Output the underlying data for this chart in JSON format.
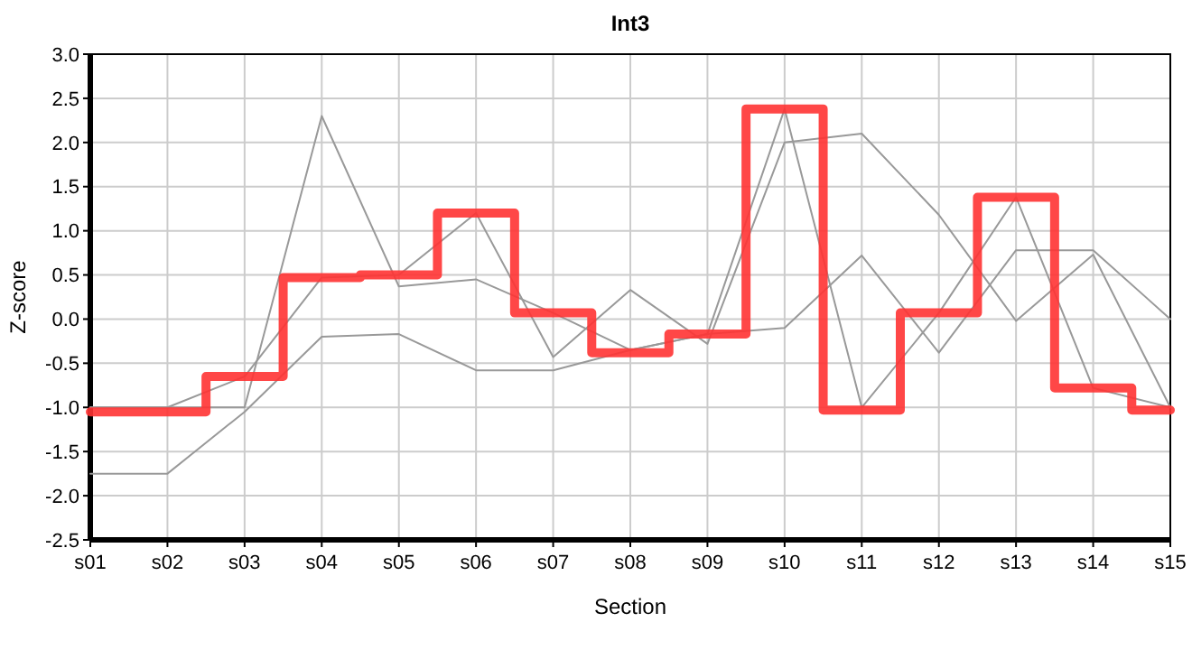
{
  "chart_data": {
    "type": "line",
    "title": "Int3",
    "xlabel": "Section",
    "ylabel": "Z-score",
    "categories": [
      "s01",
      "s02",
      "s03",
      "s04",
      "s05",
      "s06",
      "s07",
      "s08",
      "s09",
      "s10",
      "s11",
      "s12",
      "s13",
      "s14",
      "s15"
    ],
    "series": [
      {
        "color": "#999999",
        "values": [
          -1.0,
          -1.0,
          -1.0,
          2.3,
          0.37,
          0.45,
          0.07,
          -0.35,
          -0.17,
          2.38,
          -1.0,
          0.07,
          1.38,
          -0.78,
          -1.0
        ]
      },
      {
        "color": "#999999",
        "values": [
          -1.0,
          -1.0,
          -0.65,
          0.47,
          0.5,
          1.2,
          -0.43,
          0.33,
          -0.28,
          2.0,
          2.1,
          1.18,
          -0.02,
          0.73,
          -1.0
        ]
      },
      {
        "color": "#999999",
        "values": [
          -1.75,
          -1.75,
          -1.05,
          -0.2,
          -0.17,
          -0.58,
          -0.58,
          -0.35,
          -0.17,
          -0.1,
          0.72,
          -0.38,
          0.78,
          0.78,
          0.0
        ]
      },
      {
        "type": "step",
        "color": "#ff3333",
        "values": [
          -1.05,
          -1.05,
          -0.65,
          0.47,
          0.5,
          1.2,
          0.07,
          -0.38,
          -0.17,
          2.38,
          -1.03,
          0.07,
          1.38,
          -0.78,
          -1.03
        ]
      }
    ],
    "ylim": [
      -2.5,
      3.0
    ],
    "yticks": [
      -2.5,
      {
        "value": -2,
        "label": "-2.0"
      },
      -1.5,
      {
        "value": -1,
        "label": "-1.0"
      },
      -0.5,
      {
        "value": 0,
        "label": "0.0"
      },
      0.5,
      {
        "value": 1,
        "label": "1.0"
      },
      1.5,
      {
        "value": 2,
        "label": "2.0"
      },
      2.5,
      {
        "value": 3,
        "label": "3.0"
      }
    ],
    "grid": true,
    "marker": "none",
    "line_style": "solid"
  }
}
